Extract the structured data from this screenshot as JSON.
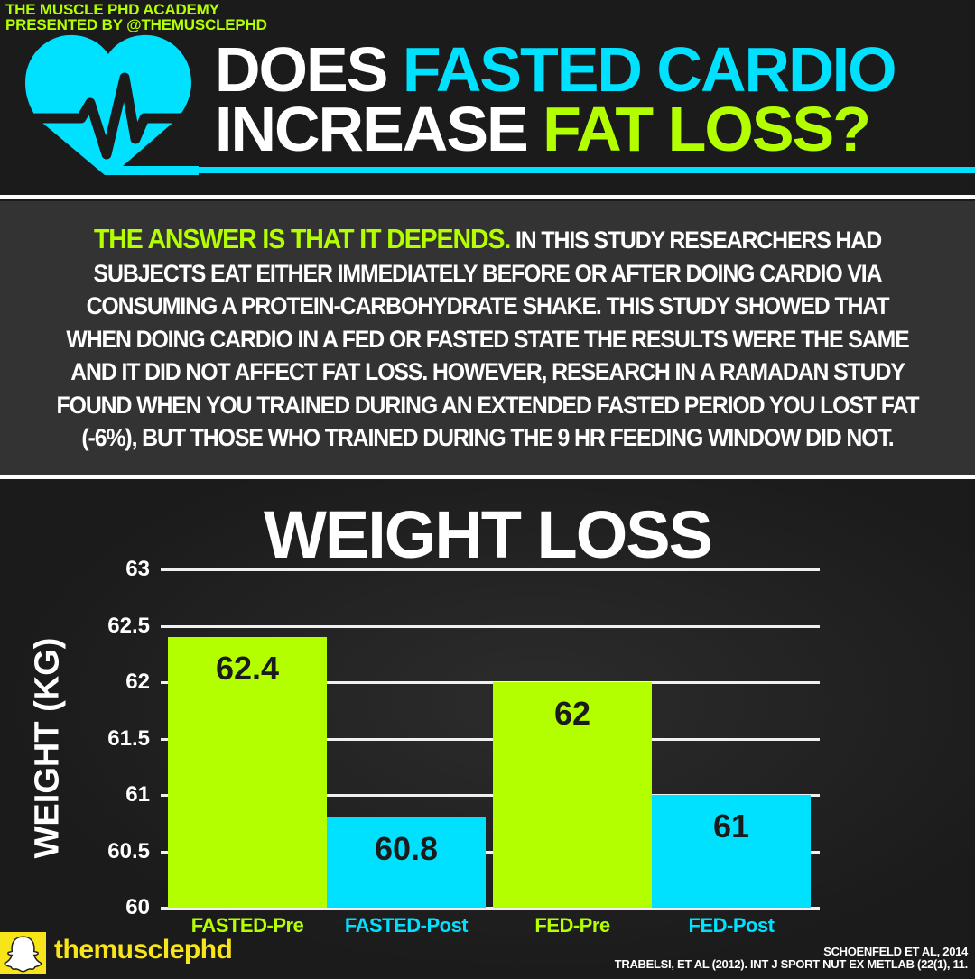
{
  "header": {
    "brand_line1": "THE MUSCLE PHD ACADEMY",
    "brand_line2": "PRESENTED BY @THEMUSCLEPHD",
    "icon": "heart-pulse-icon",
    "title": {
      "line1_white": "DOES ",
      "line1_cyan": "FASTED CARDIO",
      "line2_white": "INCREASE ",
      "line2_lime": "FAT LOSS?"
    }
  },
  "answer": {
    "lead": "THE ANSWER IS THAT IT DEPENDS.",
    "body": " IN THIS STUDY RESEARCHERS HAD SUBJECTS EAT EITHER IMMEDIATELY BEFORE OR AFTER DOING CARDIO VIA CONSUMING A PROTEIN-CARBOHYDRATE SHAKE. THIS STUDY SHOWED THAT WHEN DOING CARDIO IN A FED OR FASTED STATE THE RESULTS WERE THE SAME AND IT DID NOT AFFECT FAT LOSS. HOWEVER, RESEARCH IN A RAMADAN STUDY FOUND WHEN YOU TRAINED DURING AN EXTENDED FASTED PERIOD YOU LOST FAT (-6%), BUT THOSE WHO TRAINED DURING THE 9 HR FEEDING WINDOW DID NOT."
  },
  "colors": {
    "lime": "#b3ff00",
    "cyan": "#00e1ff",
    "bg": "#1b1b1b",
    "panel": "#333333",
    "snap_yellow": "#f7e419"
  },
  "chart_data": {
    "type": "bar",
    "title": "WEIGHT LOSS",
    "xlabel": "",
    "ylabel": "WEIGHT (KG)",
    "ylim": [
      60,
      63
    ],
    "yticks": [
      "63",
      "62.5",
      "62",
      "61.5",
      "61",
      "60.5",
      "60"
    ],
    "grid": true,
    "legend": null,
    "categories": [
      "FASTED-Pre",
      "FASTED-Post",
      "FED-Pre",
      "FED-Post"
    ],
    "values": [
      62.4,
      60.8,
      62,
      61
    ],
    "value_labels": [
      "62.4",
      "60.8",
      "62",
      "61"
    ],
    "bar_colors": [
      "#b3ff00",
      "#00e1ff",
      "#b3ff00",
      "#00e1ff"
    ]
  },
  "footer": {
    "snap_icon": "snapchat-ghost-icon",
    "handle": "themusclephd",
    "citation1": "SCHOENFELD ET AL, 2014",
    "citation2": "TRABELSI, ET AL (2012). INT J SPORT NUT EX METLAB (22(1), 11."
  }
}
